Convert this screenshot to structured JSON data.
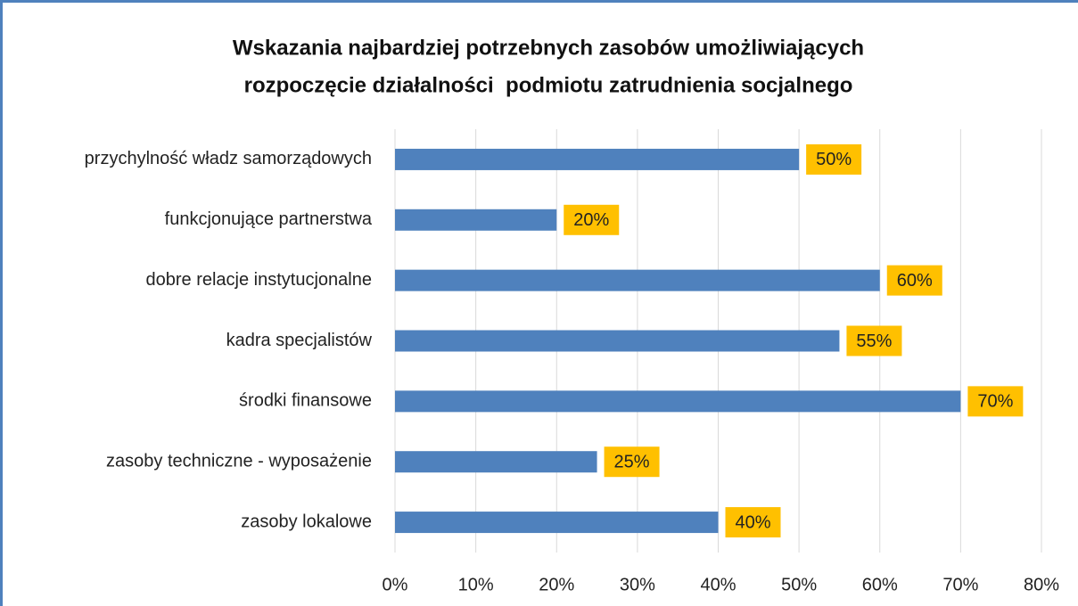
{
  "chart_data": {
    "type": "bar",
    "orientation": "horizontal",
    "title": [
      "Wskazania najbardziej potrzebnych zasobów umożliwiających",
      "rozpoczęcie działalności  podmiotu zatrudnienia socjalnego"
    ],
    "categories": [
      "przychylność władz samorządowych",
      "funkcjonujące partnerstwa",
      "dobre relacje instytucjonalne",
      "kadra specjalistów",
      "środki finansowe",
      "zasoby techniczne - wyposażenie",
      "zasoby lokalowe"
    ],
    "values": [
      50,
      20,
      60,
      55,
      70,
      25,
      40
    ],
    "value_labels": [
      "50%",
      "20%",
      "60%",
      "55%",
      "70%",
      "25%",
      "40%"
    ],
    "color": "#4f81bd",
    "label_box_color": "#ffc000",
    "xlim": [
      0,
      80
    ],
    "xticks": [
      {
        "value": 0,
        "label": "0%"
      },
      {
        "value": 10,
        "label": "10%"
      },
      {
        "value": 20,
        "label": "20%"
      },
      {
        "value": 30,
        "label": "30%"
      },
      {
        "value": 40,
        "label": "40%"
      },
      {
        "value": 50,
        "label": "50%"
      },
      {
        "value": 60,
        "label": "60%"
      },
      {
        "value": 70,
        "label": "70%"
      },
      {
        "value": 80,
        "label": "80%"
      }
    ],
    "grid": true
  }
}
